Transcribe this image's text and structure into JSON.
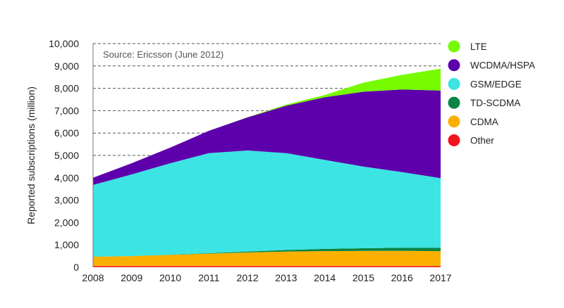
{
  "chart_data": {
    "type": "area",
    "stacked": true,
    "title": "",
    "annotation": "Source: Ericsson (June 2012)",
    "xlabel": "",
    "ylabel": "Reported subscriptions (million)",
    "x": [
      "2008",
      "2009",
      "2010",
      "2011",
      "2012",
      "2013",
      "2014",
      "2015",
      "2016",
      "2017"
    ],
    "ylim": [
      0,
      10000
    ],
    "yticks": [
      0,
      1000,
      2000,
      3000,
      4000,
      5000,
      6000,
      7000,
      8000,
      9000,
      10000
    ],
    "ytick_labels": [
      "0",
      "1,000",
      "2,000",
      "3,000",
      "4,000",
      "5,000",
      "6,000",
      "7,000",
      "8,000",
      "9,000",
      "10,000"
    ],
    "grid": "horizontal-dashed",
    "legend_position": "right",
    "series": [
      {
        "name": "Other",
        "color": "#f0141e",
        "values": [
          50,
          50,
          50,
          50,
          50,
          50,
          50,
          50,
          50,
          50
        ]
      },
      {
        "name": "CDMA",
        "color": "#fbb000",
        "values": [
          420,
          450,
          500,
          560,
          610,
          650,
          670,
          680,
          680,
          670
        ]
      },
      {
        "name": "TD-SCDMA",
        "color": "#0a8545",
        "values": [
          0,
          0,
          10,
          20,
          40,
          70,
          100,
          120,
          140,
          150
        ]
      },
      {
        "name": "GSM/EDGE",
        "color": "#3de4e4",
        "values": [
          3210,
          3650,
          4090,
          4470,
          4520,
          4330,
          3980,
          3650,
          3380,
          3110
        ]
      },
      {
        "name": "WCDMA/HSPA",
        "color": "#5d00ac",
        "values": [
          320,
          500,
          700,
          1000,
          1480,
          2120,
          2800,
          3350,
          3700,
          3920
        ]
      },
      {
        "name": "LTE",
        "color": "#76fb00",
        "values": [
          0,
          0,
          0,
          0,
          10,
          50,
          100,
          400,
          650,
          980
        ]
      }
    ],
    "legend_order": [
      "LTE",
      "WCDMA/HSPA",
      "GSM/EDGE",
      "TD-SCDMA",
      "CDMA",
      "Other"
    ]
  }
}
